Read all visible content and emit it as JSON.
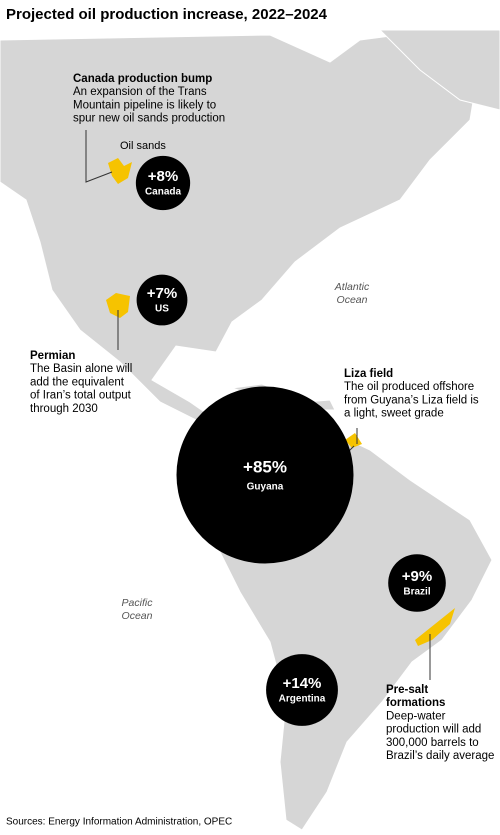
{
  "title": "Projected oil production increase, 2022–2024",
  "bubbles": [
    {
      "name": "Canada",
      "value": 8,
      "value_label": "+8%"
    },
    {
      "name": "US",
      "value": 7,
      "value_label": "+7%"
    },
    {
      "name": "Guyana",
      "value": 85,
      "value_label": "+85%"
    },
    {
      "name": "Brazil",
      "value": 9,
      "value_label": "+9%"
    },
    {
      "name": "Argentina",
      "value": 14,
      "value_label": "+14%"
    }
  ],
  "annotations": [
    {
      "title_lines": [
        "Canada production bump"
      ],
      "lines": [
        "An expansion of the Trans",
        "Mountain pipeline is likely to",
        "spur new oil sands production"
      ]
    },
    {
      "title_lines": [
        "Permian"
      ],
      "lines": [
        "The Basin alone will",
        "add the equivalent",
        "of Iran’s total output",
        "through 2030"
      ]
    },
    {
      "title_lines": [
        "Liza field"
      ],
      "lines": [
        "The oil produced offshore",
        "from Guyana’s Liza field is",
        "a light, sweet grade"
      ]
    },
    {
      "title_lines": [
        "Pre-salt",
        "formations"
      ],
      "lines": [
        "Deep-water",
        "production will add",
        "300,000 barrels to",
        "Brazil’s daily average"
      ]
    }
  ],
  "oil_sands_label": "Oil sands",
  "ocean_labels": [
    [
      "Atlantic",
      "Ocean"
    ],
    [
      "Pacific",
      "Ocean"
    ]
  ],
  "source": "Sources: Energy Information Administration, OPEC"
}
